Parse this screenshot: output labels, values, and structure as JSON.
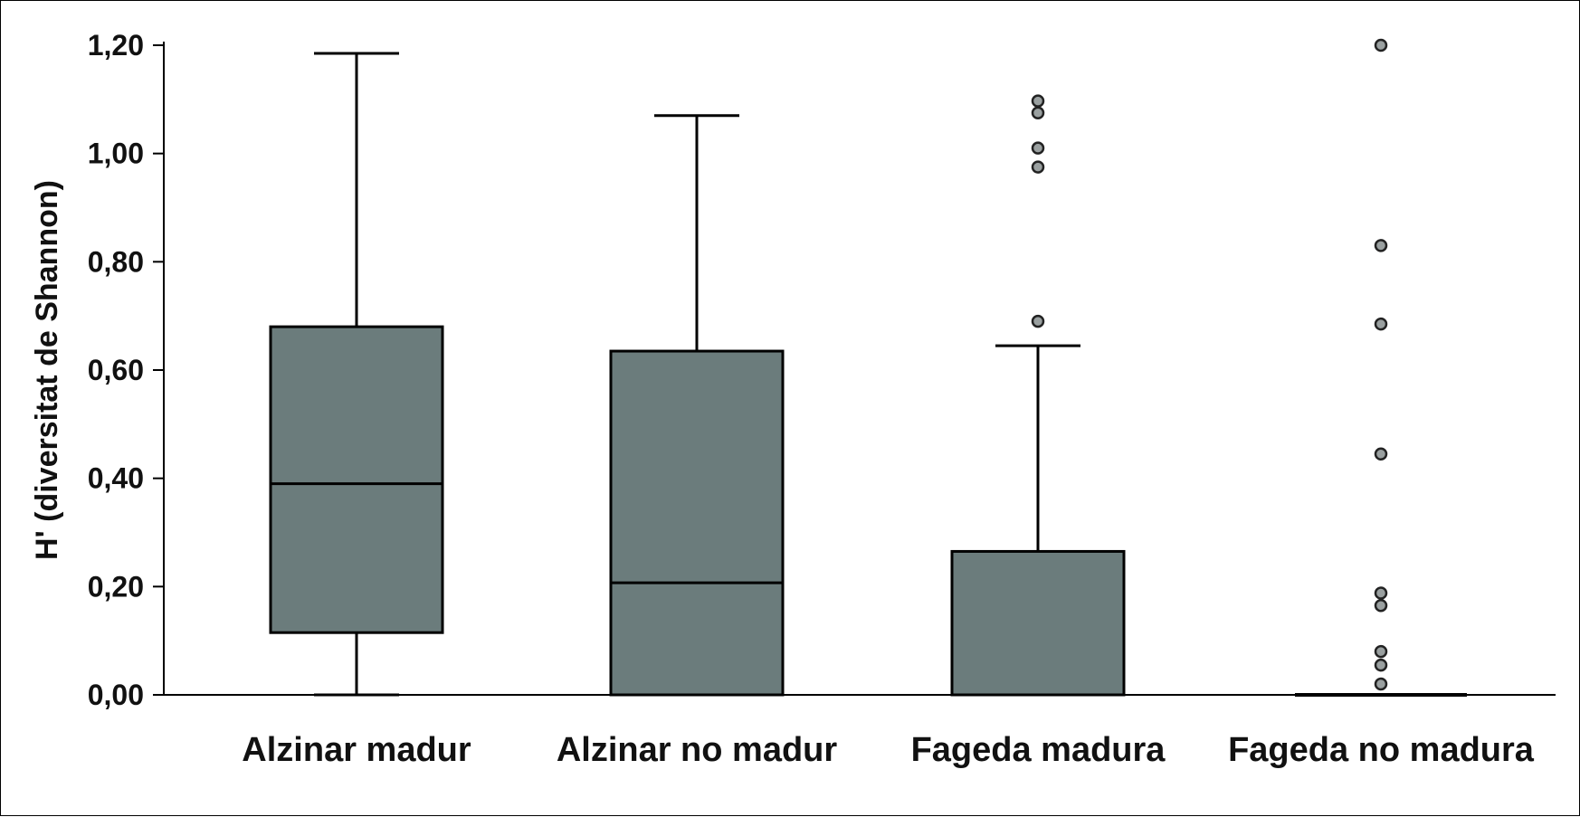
{
  "chart_data": {
    "type": "boxplot",
    "ylabel": "H' (diversitat de Shannon)",
    "xlabel": "",
    "ylim": [
      0,
      1.2
    ],
    "yticks": [
      "0,00",
      "0,20",
      "0,40",
      "0,60",
      "0,80",
      "1,00",
      "1,20"
    ],
    "ytick_values": [
      0,
      0.2,
      0.4,
      0.6,
      0.8,
      1.0,
      1.2
    ],
    "grid": false,
    "box_color": "#6b7c7c",
    "categories": [
      "Alzinar madur",
      "Alzinar no madur",
      "Fageda madura",
      "Fageda no madura"
    ],
    "boxes": [
      {
        "whisker_low": 0.0,
        "q1": 0.115,
        "median": 0.39,
        "q3": 0.68,
        "whisker_high": 1.185,
        "outliers": []
      },
      {
        "whisker_low": 0.0,
        "q1": 0.0,
        "median": 0.207,
        "q3": 0.635,
        "whisker_high": 1.07,
        "outliers": []
      },
      {
        "whisker_low": 0.0,
        "q1": 0.0,
        "median": 0.0,
        "q3": 0.265,
        "whisker_high": 0.645,
        "outliers": [
          0.69,
          0.975,
          1.01,
          1.075,
          1.097
        ]
      },
      {
        "whisker_low": 0.0,
        "q1": 0.0,
        "median": 0.0,
        "q3": 0.0,
        "whisker_high": 0.0,
        "outliers": [
          0.02,
          0.055,
          0.08,
          0.165,
          0.188,
          0.445,
          0.685,
          0.83,
          1.2
        ]
      }
    ]
  }
}
